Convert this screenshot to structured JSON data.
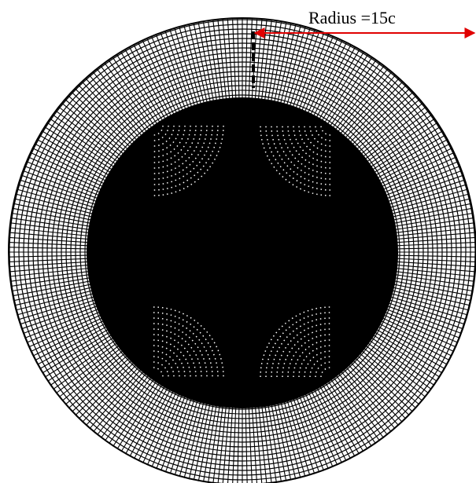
{
  "annotation": {
    "label": "Radius =15c"
  }
}
